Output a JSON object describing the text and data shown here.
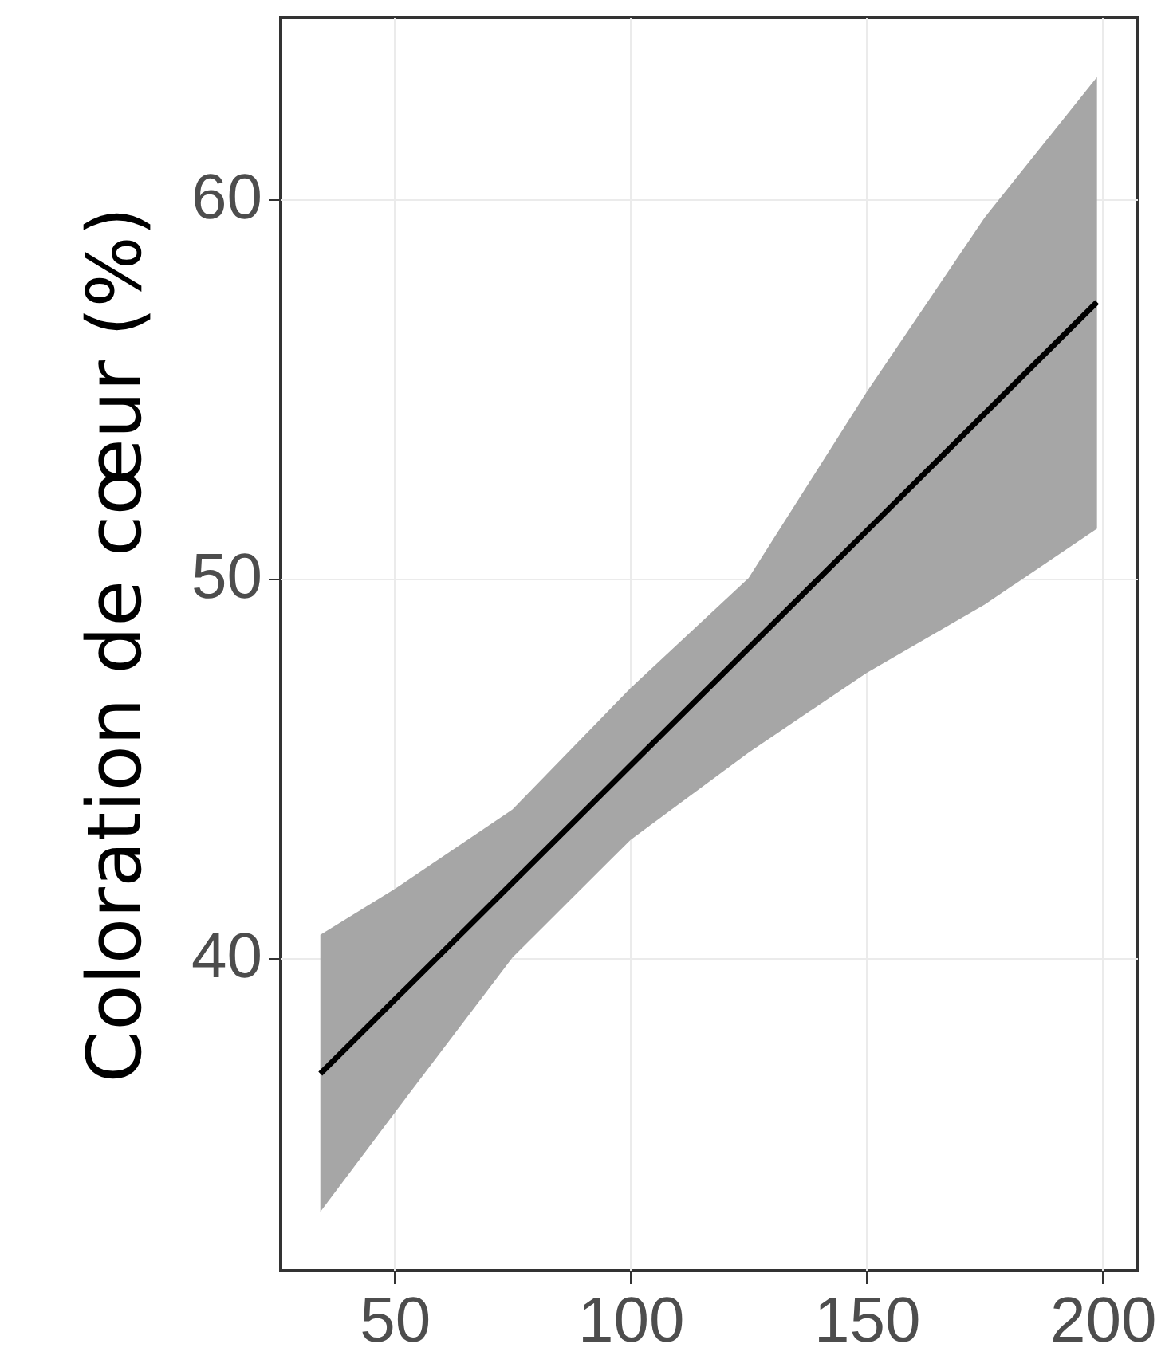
{
  "chart_data": {
    "type": "line",
    "ylabel": "Coloration de cœur (%)",
    "x": [
      34.3,
      50,
      75,
      100,
      125,
      150,
      175,
      198.8
    ],
    "series": [
      {
        "color": "#000000",
        "values": [
          36.94,
          38.88,
          41.97,
          45.06,
          48.15,
          51.24,
          54.33,
          57.27
        ],
        "lower": [
          33.3,
          35.9,
          40.0,
          43.1,
          45.4,
          47.5,
          49.3,
          51.3
        ],
        "upper": [
          40.6,
          41.8,
          43.9,
          47.1,
          50.0,
          54.9,
          59.5,
          63.2
        ]
      }
    ],
    "xlim": [
      25.9,
      207.3
    ],
    "xticks": [
      50,
      100,
      150,
      200
    ],
    "ylim": [
      31.75,
      64.77
    ],
    "yticks": [
      40,
      50,
      60
    ],
    "grid": true,
    "marker": "none",
    "line_style": "solid"
  }
}
